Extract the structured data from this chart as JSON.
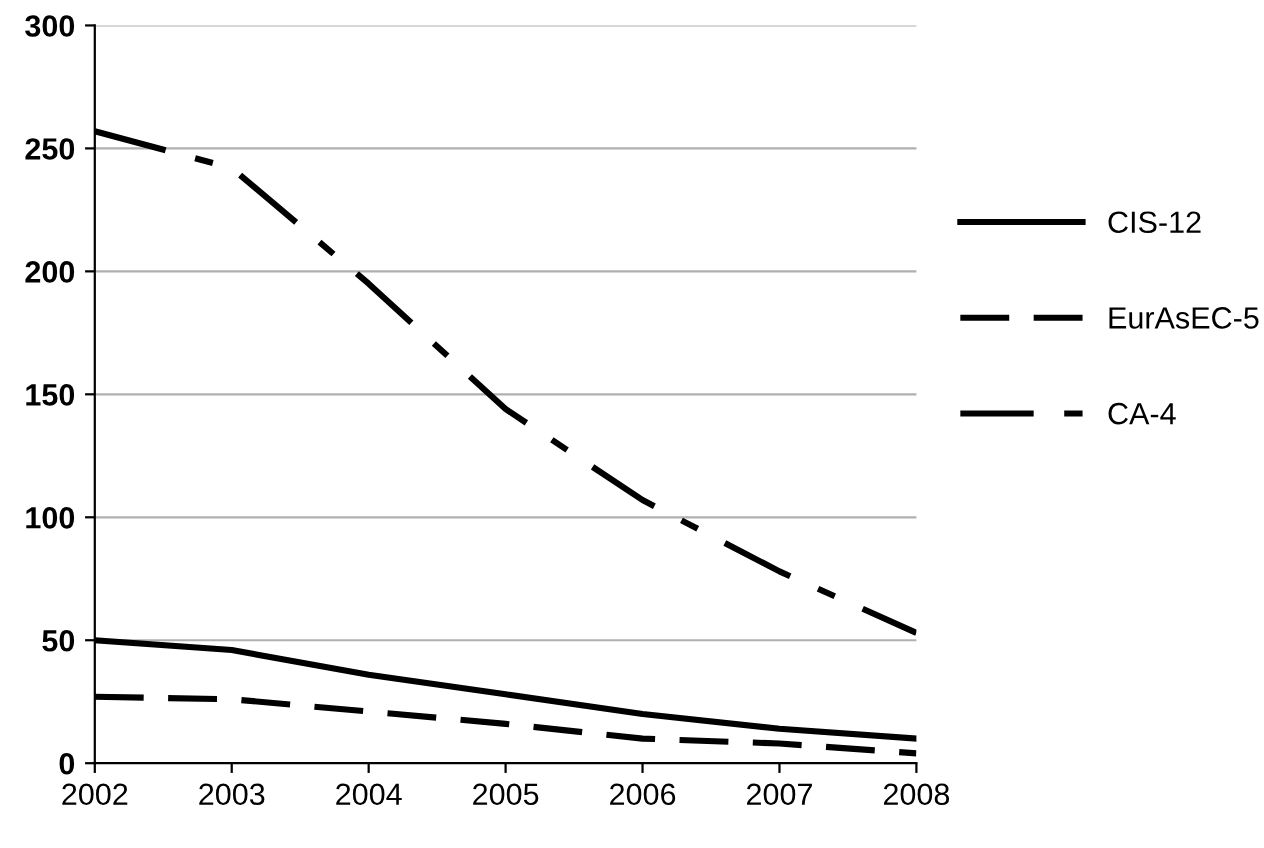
{
  "chart_data": {
    "type": "line",
    "x": [
      2002,
      2003,
      2004,
      2005,
      2006,
      2007,
      2008
    ],
    "series": [
      {
        "name": "CIS-12",
        "color": "#000000",
        "line_style": "solid",
        "values": [
          50,
          46,
          36,
          28,
          20,
          14,
          10
        ]
      },
      {
        "name": "EurAsEC-5",
        "color": "#000000",
        "line_style": "dashed",
        "values": [
          27,
          26,
          21,
          16,
          10,
          8,
          4
        ]
      },
      {
        "name": "CA-4",
        "color": "#000000",
        "line_style": "dashdot",
        "values": [
          257,
          242,
          195,
          144,
          107,
          78,
          53
        ]
      }
    ],
    "xlim": [
      2002,
      2008
    ],
    "xticks": [
      2002,
      2003,
      2004,
      2005,
      2006,
      2007,
      2008
    ],
    "ylim": [
      0,
      300
    ],
    "yticks": [
      0,
      50,
      100,
      150,
      200,
      250,
      300
    ],
    "grid": "y",
    "legend": "right",
    "marker": "none"
  }
}
